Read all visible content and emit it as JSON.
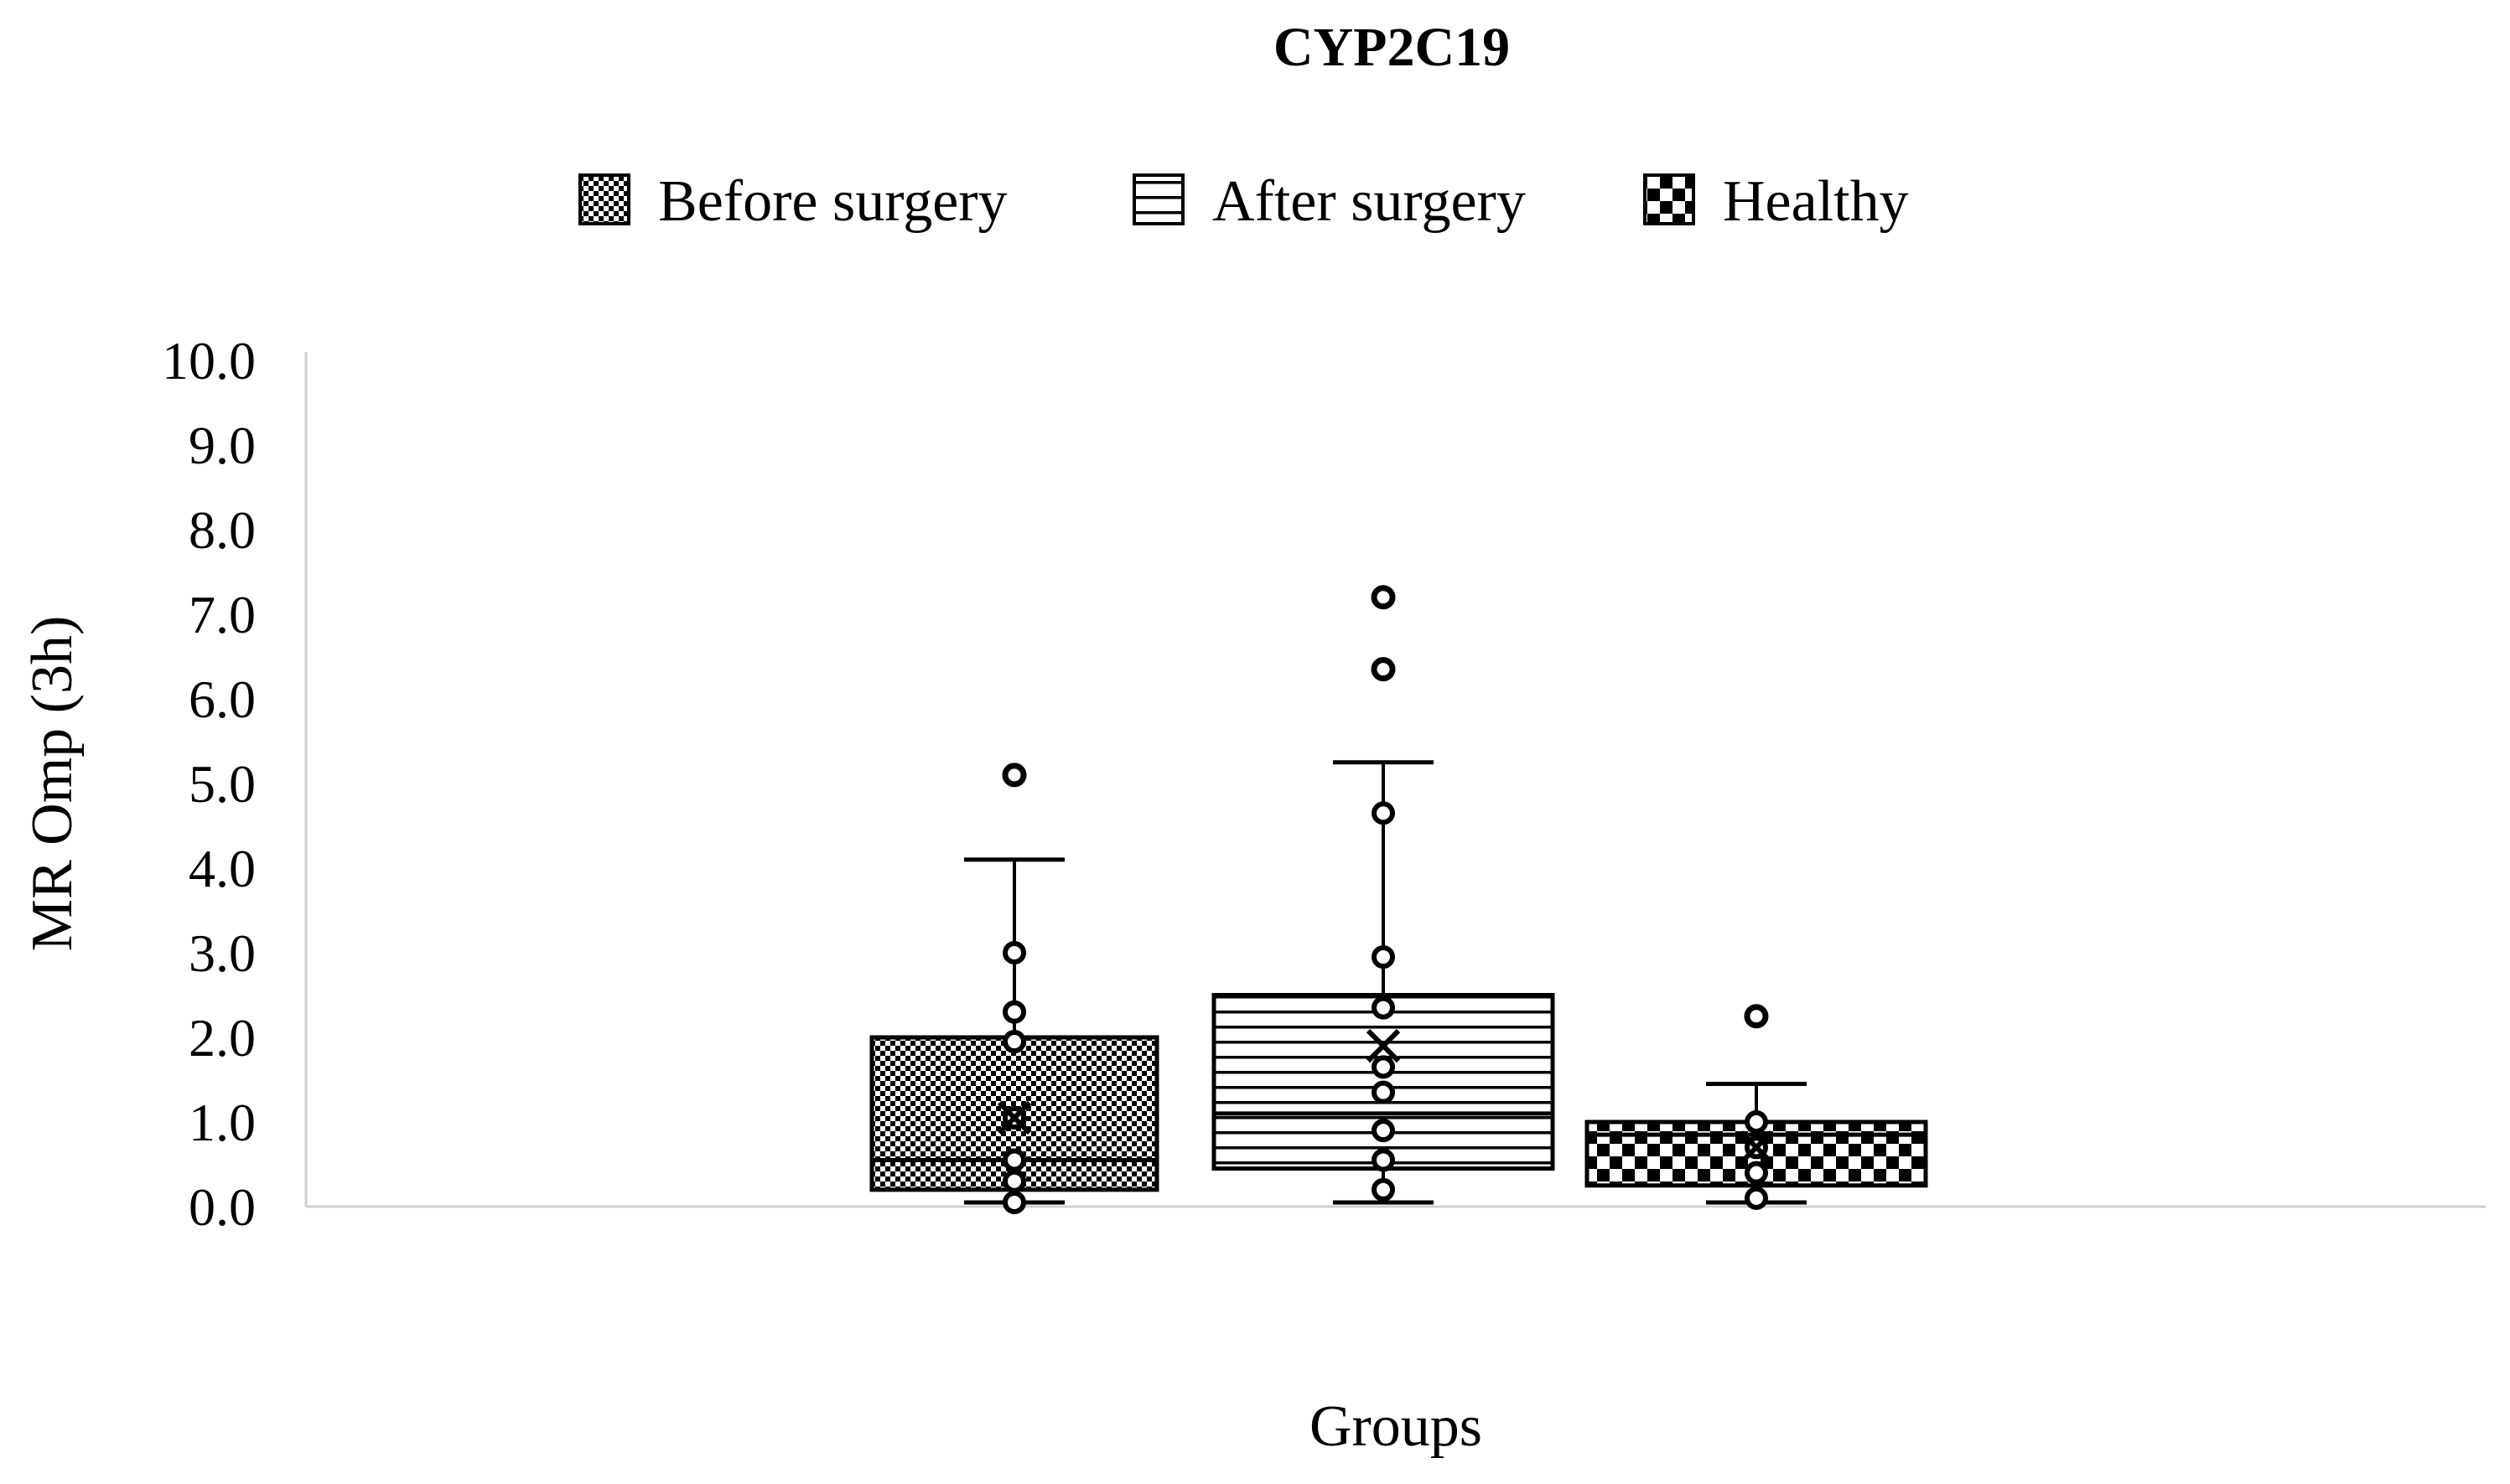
{
  "chart_data": {
    "type": "box",
    "title": "CYP2C19",
    "xlabel": "Groups",
    "ylabel": "MR Omp (3h)",
    "ylim": [
      0,
      10
    ],
    "yticks": [
      "0.0",
      "1.0",
      "2.0",
      "3.0",
      "4.0",
      "5.0",
      "6.0",
      "7.0",
      "8.0",
      "9.0",
      "10.0"
    ],
    "grid": false,
    "legend_position": "top-center",
    "series": [
      {
        "name": "Before surgery",
        "pattern": "checker-fine",
        "whisker_low": 0.05,
        "q1": 0.2,
        "median": 0.55,
        "mean": 1.05,
        "q3": 2.0,
        "whisker_high": 4.1,
        "points": [
          0.05,
          0.3,
          0.55,
          1.05,
          1.95,
          2.3,
          3.0
        ],
        "outliers": [
          5.1
        ]
      },
      {
        "name": "After surgery",
        "pattern": "horizontal-lines",
        "whisker_low": 0.05,
        "q1": 0.45,
        "median": 1.1,
        "mean": 1.9,
        "q3": 2.5,
        "whisker_high": 5.25,
        "points": [
          0.2,
          0.55,
          0.9,
          1.35,
          1.65,
          2.35,
          2.95,
          4.65
        ],
        "outliers": [
          6.35,
          7.2
        ]
      },
      {
        "name": "Healthy",
        "pattern": "checker-coarse",
        "whisker_low": 0.05,
        "q1": 0.25,
        "median": 0.85,
        "mean": 0.7,
        "q3": 1.0,
        "whisker_high": 1.45,
        "points": [
          0.1,
          0.4,
          0.7,
          1.0
        ],
        "outliers": [
          2.25
        ]
      }
    ]
  }
}
